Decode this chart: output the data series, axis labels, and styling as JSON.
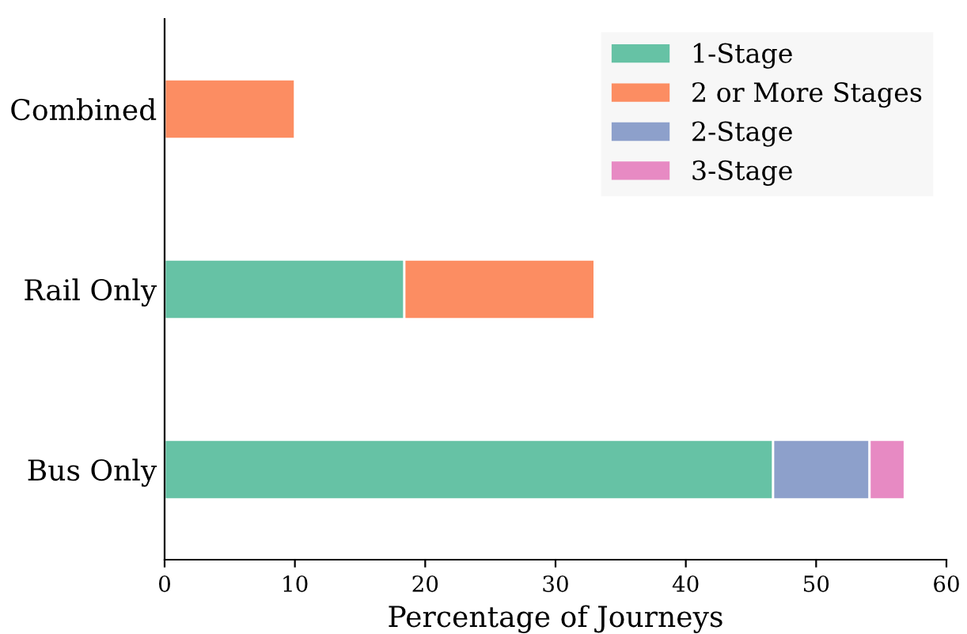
{
  "chart_data": {
    "type": "bar",
    "orientation": "horizontal",
    "stacked": true,
    "categories": [
      "Combined",
      "Rail Only",
      "Bus Only"
    ],
    "series": [
      {
        "name": "1-Stage",
        "color": "#66c2a5",
        "values": [
          null,
          18.4,
          46.7
        ]
      },
      {
        "name": "2 or More Stages",
        "color": "#fc8d62",
        "values": [
          10,
          14.6,
          null
        ]
      },
      {
        "name": "2-Stage",
        "color": "#8da0cb",
        "values": [
          null,
          null,
          7.4
        ]
      },
      {
        "name": "3-Stage",
        "color": "#e78ac3",
        "values": [
          null,
          null,
          2.7
        ]
      }
    ],
    "xlabel": "Percentage of Journeys",
    "xlim": [
      0,
      60
    ],
    "xticks": [
      0,
      10,
      20,
      30,
      40,
      50,
      60
    ],
    "grid": false,
    "legend": "top right"
  }
}
